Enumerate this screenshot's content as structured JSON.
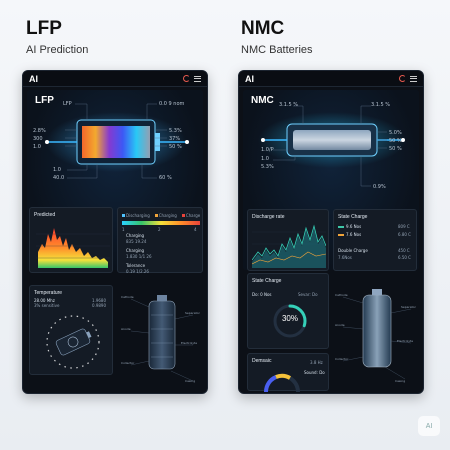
{
  "left": {
    "heading": "LFP",
    "subheading": "AI Prediction",
    "app_label": "AI",
    "hero": {
      "chemistry": "LFP",
      "labels_left": [
        "LFP",
        "2.8%",
        "300",
        "1.0",
        "1.0",
        "40.0"
      ],
      "labels_right": [
        "0.0 9 nom",
        "5.3%",
        "37%",
        "50 %",
        "60 %"
      ]
    },
    "predicted_card": {
      "title": "Predicted",
      "y_ticks": [
        "2.6",
        "2.0",
        "1.5",
        "1.0",
        "0.5"
      ]
    },
    "legend_card": {
      "legend": [
        "Discharging",
        "Charging",
        "Charge"
      ],
      "scale": [
        "1",
        "2",
        "4"
      ],
      "rows": [
        {
          "label": "Charging",
          "value": "835 19.24"
        },
        {
          "label": "Charging",
          "value": "1.830 1/1 26"
        },
        {
          "label": "Tolerance",
          "value": "0.19 1/2.26"
        }
      ]
    },
    "temperature_card": {
      "title": "Temperature",
      "value": "28.00 Mhz",
      "sub": "3% sensitive",
      "right_value": "1.9680",
      "right_sub": "0.9890"
    },
    "model_labels": [
      "Cathode",
      "Separator",
      "Anode",
      "Electrolyte",
      "Collector",
      "Casing"
    ]
  },
  "right": {
    "heading": "NMC",
    "subheading": "NMC Batteries",
    "app_label": "AI",
    "hero": {
      "chemistry": "NMC",
      "labels_left": [
        "3.1.5 %",
        "1.0/P",
        "1.0",
        "5.3%"
      ],
      "labels_right": [
        "3.1.5 %",
        "5.0%",
        "50 %",
        "50 %",
        "0.9%"
      ]
    },
    "discharge_card": {
      "title": "Discharge rate"
    },
    "state_card": {
      "title": "State Charge",
      "rows": [
        {
          "label": "9.6 Nos",
          "value": "809 C",
          "color": "#3ec7a8"
        },
        {
          "label": "7.6 Nos",
          "value": "6.80 C",
          "color": "#f0a43a"
        },
        {
          "label": "Double Charge",
          "value": "450 C",
          "color": ""
        },
        {
          "label": "7.6Nos",
          "value": "6.50 C",
          "color": ""
        }
      ]
    },
    "gauge_card": {
      "title": "State Charge",
      "left": "Do: 0 Nos",
      "right": "Sevar: Do",
      "value": "30%",
      "percent": 30
    },
    "density_card": {
      "title": "Demsaic",
      "value": "3.8 Hz",
      "sub": "Sound: Do"
    },
    "model_labels": [
      "Cathode",
      "Separator",
      "Anode",
      "Electrolyte",
      "Collector",
      "Casing"
    ]
  },
  "watermark": "AI",
  "colors": {
    "teal": "#35d0b8",
    "cyan": "#4fc3ff",
    "orange": "#f0a43a",
    "red": "#e8433a"
  }
}
